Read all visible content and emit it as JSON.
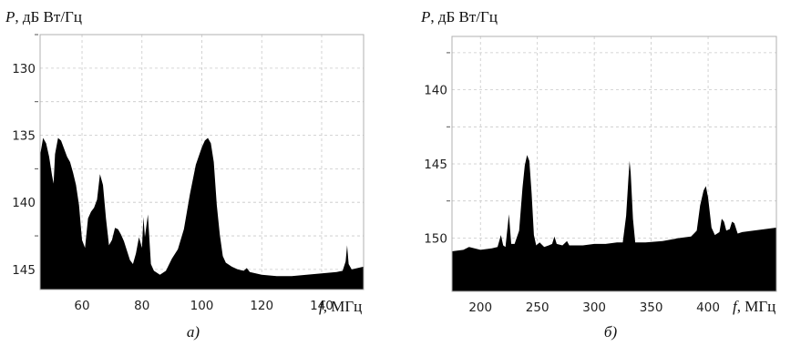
{
  "chart_data": [
    {
      "type": "area",
      "panel_label": "а)",
      "ylabel_symbol": "P",
      "ylabel_unit": ", дБ Вт/Гц",
      "xlabel_symbol": "f",
      "xlabel_unit": ", МГц",
      "xlim": [
        46,
        154
      ],
      "ylim": [
        146.5,
        127.5
      ],
      "x_ticks": [
        60,
        80,
        100,
        120,
        140
      ],
      "y_ticks": [
        130,
        135,
        140,
        145
      ],
      "y_minor_ticks": [
        127.5,
        132.5,
        137.5,
        142.5
      ],
      "grid": true,
      "baseline": 146.5,
      "series": [
        {
          "values": [
            [
              46,
              136.5
            ],
            [
              47,
              135.2
            ],
            [
              48,
              135.6
            ],
            [
              49,
              136.6
            ],
            [
              50,
              138.0
            ],
            [
              50.5,
              138.6
            ],
            [
              51,
              136.4
            ],
            [
              52,
              135.2
            ],
            [
              53,
              135.4
            ],
            [
              54,
              136.0
            ],
            [
              55,
              136.6
            ],
            [
              56,
              137.0
            ],
            [
              57,
              137.8
            ],
            [
              58,
              138.7
            ],
            [
              59,
              140.2
            ],
            [
              60,
              142.8
            ],
            [
              61,
              143.4
            ],
            [
              62,
              141.2
            ],
            [
              63,
              140.7
            ],
            [
              64,
              140.4
            ],
            [
              65,
              139.8
            ],
            [
              66,
              137.9
            ],
            [
              67,
              138.7
            ],
            [
              68,
              141.2
            ],
            [
              69,
              143.2
            ],
            [
              70,
              142.8
            ],
            [
              71,
              141.9
            ],
            [
              72,
              142.0
            ],
            [
              73,
              142.4
            ],
            [
              74,
              142.9
            ],
            [
              75,
              143.6
            ],
            [
              76,
              144.3
            ],
            [
              77,
              144.6
            ],
            [
              78,
              143.8
            ],
            [
              79,
              142.6
            ],
            [
              80,
              143.4
            ],
            [
              80.5,
              141.1
            ],
            [
              81,
              142.6
            ],
            [
              82,
              140.9
            ],
            [
              83,
              144.6
            ],
            [
              84,
              145.1
            ],
            [
              86,
              145.4
            ],
            [
              88,
              145.1
            ],
            [
              90,
              144.2
            ],
            [
              92,
              143.5
            ],
            [
              94,
              142.0
            ],
            [
              96,
              139.4
            ],
            [
              98,
              137.2
            ],
            [
              100,
              135.9
            ],
            [
              101,
              135.4
            ],
            [
              102,
              135.2
            ],
            [
              103,
              135.6
            ],
            [
              104,
              137.0
            ],
            [
              105,
              140.2
            ],
            [
              106,
              142.4
            ],
            [
              107,
              144.0
            ],
            [
              108,
              144.5
            ],
            [
              110,
              144.8
            ],
            [
              112,
              145.0
            ],
            [
              114,
              145.1
            ],
            [
              115,
              144.9
            ],
            [
              116,
              145.2
            ],
            [
              120,
              145.4
            ],
            [
              125,
              145.5
            ],
            [
              130,
              145.5
            ],
            [
              135,
              145.4
            ],
            [
              140,
              145.3
            ],
            [
              145,
              145.2
            ],
            [
              147,
              145.1
            ],
            [
              148,
              144.4
            ],
            [
              148.5,
              143.2
            ],
            [
              149,
              144.6
            ],
            [
              150,
              145.0
            ],
            [
              154,
              144.8
            ]
          ]
        }
      ]
    },
    {
      "type": "area",
      "panel_label": "б)",
      "ylabel_symbol": "P",
      "ylabel_unit": ", дБ Вт/Гц",
      "xlabel_symbol": "f",
      "xlabel_unit": ", МГц",
      "xlim": [
        175,
        460
      ],
      "ylim": [
        153.6,
        136.4
      ],
      "x_ticks": [
        200,
        250,
        300,
        350,
        400
      ],
      "y_ticks": [
        140,
        145,
        150
      ],
      "y_minor_ticks": [
        137.5,
        142.5,
        147.5
      ],
      "grid": true,
      "baseline": 153.6,
      "series": [
        {
          "values": [
            [
              175,
              150.9
            ],
            [
              185,
              150.8
            ],
            [
              190,
              150.6
            ],
            [
              200,
              150.8
            ],
            [
              210,
              150.7
            ],
            [
              215,
              150.6
            ],
            [
              218,
              149.8
            ],
            [
              220,
              150.5
            ],
            [
              222,
              150.6
            ],
            [
              225,
              148.4
            ],
            [
              227,
              150.4
            ],
            [
              230,
              150.4
            ],
            [
              234,
              149.5
            ],
            [
              237,
              146.6
            ],
            [
              239,
              145.1
            ],
            [
              241,
              144.4
            ],
            [
              243,
              144.8
            ],
            [
              245,
              147.0
            ],
            [
              247,
              149.8
            ],
            [
              249,
              150.5
            ],
            [
              252,
              150.3
            ],
            [
              256,
              150.6
            ],
            [
              260,
              150.5
            ],
            [
              263,
              150.4
            ],
            [
              265,
              149.9
            ],
            [
              267,
              150.4
            ],
            [
              272,
              150.5
            ],
            [
              276,
              150.2
            ],
            [
              278,
              150.5
            ],
            [
              290,
              150.5
            ],
            [
              300,
              150.4
            ],
            [
              310,
              150.4
            ],
            [
              320,
              150.3
            ],
            [
              325,
              150.3
            ],
            [
              328,
              148.5
            ],
            [
              330,
              146.0
            ],
            [
              331,
              144.8
            ],
            [
              332,
              145.6
            ],
            [
              334,
              148.7
            ],
            [
              336,
              150.3
            ],
            [
              345,
              150.3
            ],
            [
              360,
              150.2
            ],
            [
              375,
              150.0
            ],
            [
              385,
              149.9
            ],
            [
              390,
              149.5
            ],
            [
              393,
              147.8
            ],
            [
              396,
              146.8
            ],
            [
              398,
              146.5
            ],
            [
              400,
              147.3
            ],
            [
              403,
              149.3
            ],
            [
              406,
              149.8
            ],
            [
              410,
              149.6
            ],
            [
              412,
              148.7
            ],
            [
              414,
              148.9
            ],
            [
              416,
              149.5
            ],
            [
              419,
              149.4
            ],
            [
              421,
              148.9
            ],
            [
              423,
              149.0
            ],
            [
              426,
              149.7
            ],
            [
              430,
              149.6
            ],
            [
              440,
              149.5
            ],
            [
              450,
              149.4
            ],
            [
              460,
              149.3
            ]
          ]
        }
      ]
    }
  ]
}
